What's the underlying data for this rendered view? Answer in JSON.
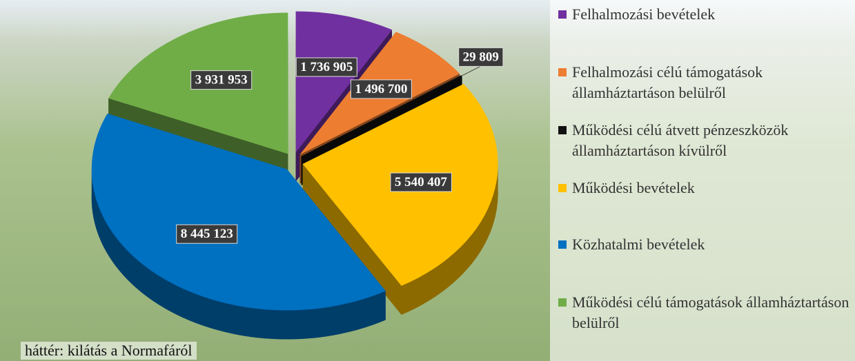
{
  "chart_data": {
    "type": "pie3d",
    "categories": [
      "Felhalmozási bevételek",
      "Felhalmozási célú támogatások államháztartáson belülről",
      "Működési célú átvett pénzeszközök államháztartáson kívülről",
      "Működési bevételek",
      "Közhatalmi bevételek",
      "Működési célú támogatások államháztartáson belülről"
    ],
    "values": [
      1736905,
      1496700,
      29809,
      5540407,
      8445123,
      3931953
    ],
    "value_labels": [
      "1 736 905",
      "1 496 700",
      "29 809",
      "5 540 407",
      "8 445 123",
      "3 931 953"
    ],
    "colors": [
      "#7030a0",
      "#ed7d31",
      "#111111",
      "#ffc000",
      "#0070c0",
      "#70ad47"
    ],
    "legend_position": "right",
    "footnote": "háttér: kilátás a Normafáról"
  }
}
